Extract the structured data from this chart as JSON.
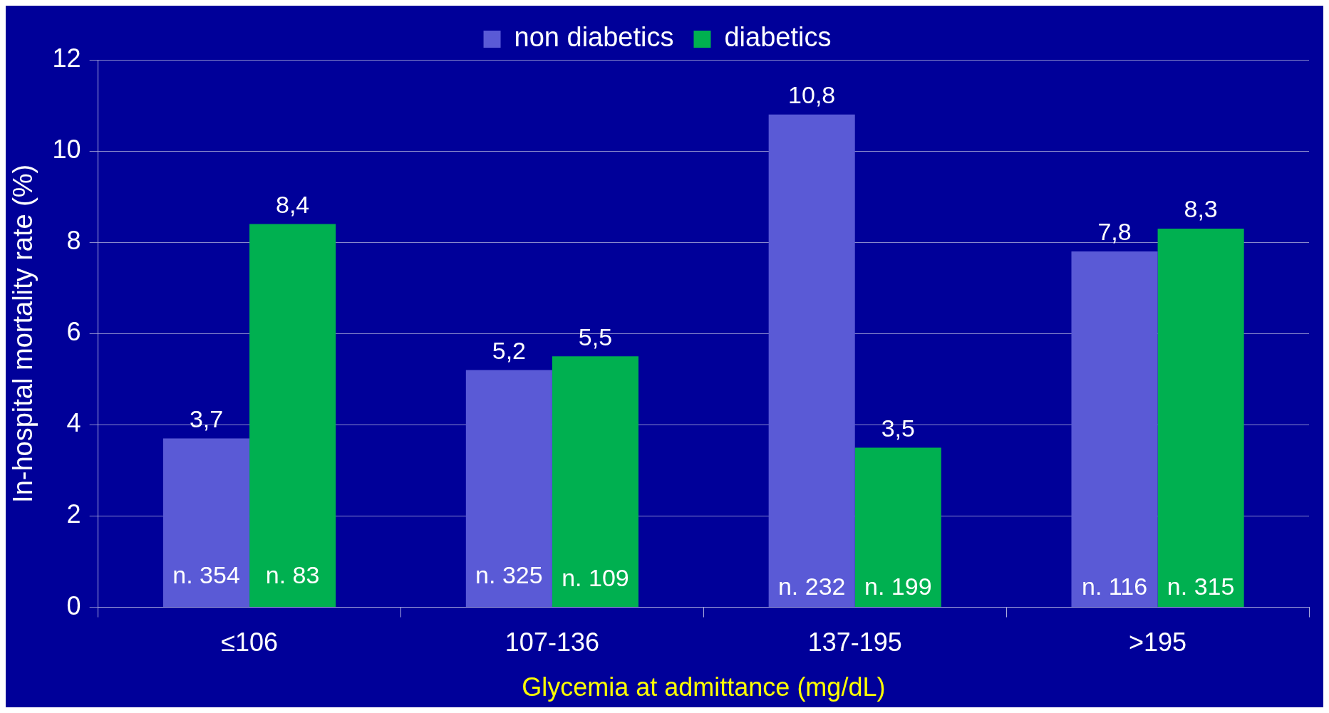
{
  "chart_data": {
    "type": "bar",
    "xlabel": "Glycemia at admittance (mg/dL)",
    "ylabel": "In-hospital mortality rate (%)",
    "categories": [
      "≤106",
      "107-136",
      "137-195",
      ">195"
    ],
    "series": [
      {
        "name": "non diabetics",
        "color": "#5a5ad6",
        "values": [
          3.7,
          5.2,
          10.8,
          7.8
        ],
        "value_labels": [
          "3,7",
          "5,2",
          "10,8",
          "7,8"
        ]
      },
      {
        "name": "diabetics",
        "color": "#00b050",
        "values": [
          8.4,
          5.5,
          3.5,
          8.3
        ],
        "value_labels": [
          "8,4",
          "5,5",
          "3,5",
          "8,3"
        ]
      }
    ],
    "annotations": [
      {
        "text": "n. 354",
        "x": "≤106",
        "y": 0.4
      },
      {
        "text": "n. 83",
        "x": "≤106",
        "y": 0.4
      },
      {
        "text": "n. 325",
        "x": "107-136",
        "y": 0.4
      },
      {
        "text": "n. 109",
        "x": "107-136",
        "y": 0.35
      },
      {
        "text": "n. 232",
        "x": "137-195",
        "y": 0.15
      },
      {
        "text": "n. 199",
        "x": "137-195",
        "y": 0.15
      },
      {
        "text": "n. 116",
        "x": ">195",
        "y": 0.15
      },
      {
        "text": "n. 315",
        "x": ">195",
        "y": 0.15
      }
    ],
    "ylim": [
      0,
      12
    ],
    "yticks": [
      0,
      2,
      4,
      6,
      8,
      10,
      12
    ],
    "grid": "y",
    "legend": "top"
  }
}
